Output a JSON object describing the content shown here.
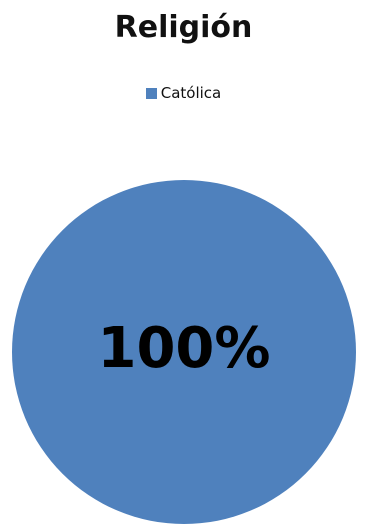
{
  "chart_data": {
    "type": "pie",
    "title": "Religión",
    "legend_position": "top",
    "series": [
      {
        "name": "Religión",
        "slices": [
          {
            "label": "Católica",
            "value": 100,
            "data_label": "100%",
            "color": "#4f81bd"
          }
        ]
      }
    ]
  }
}
